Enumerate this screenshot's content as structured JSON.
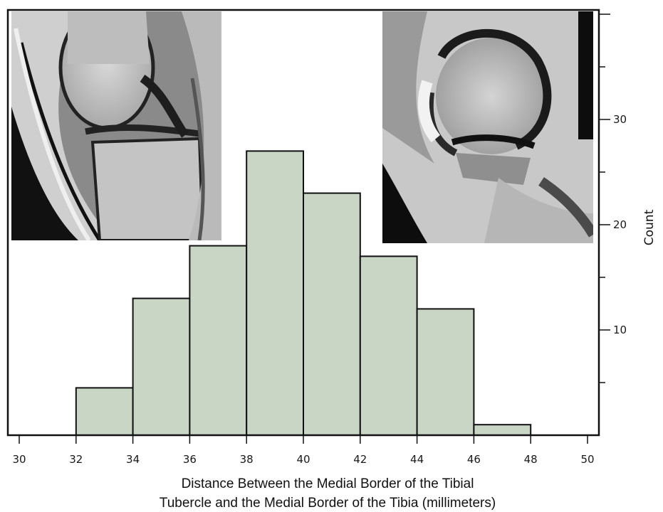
{
  "chart_data": {
    "type": "bar",
    "subtype": "histogram",
    "bins": [
      {
        "from": 32,
        "to": 34,
        "count": 4.5
      },
      {
        "from": 34,
        "to": 36,
        "count": 13
      },
      {
        "from": 36,
        "to": 38,
        "count": 18
      },
      {
        "from": 38,
        "to": 40,
        "count": 27
      },
      {
        "from": 40,
        "to": 42,
        "count": 23
      },
      {
        "from": 42,
        "to": 44,
        "count": 17
      },
      {
        "from": 44,
        "to": 46,
        "count": 12
      },
      {
        "from": 46,
        "to": 48,
        "count": 1
      }
    ],
    "xlabel_line1": "Distance Between the Medial Border of the Tibial",
    "xlabel_line2": "Tubercle and the Medial Border of the Tibia (millimeters)",
    "ylabel": "Count",
    "xlim": [
      30,
      50
    ],
    "ylim": [
      0,
      40
    ],
    "x_ticks": [
      "30",
      "32",
      "34",
      "36",
      "38",
      "40",
      "42",
      "44",
      "46",
      "48",
      "50"
    ],
    "y_ticks": [
      "10",
      "20",
      "30"
    ],
    "y_axis_side": "right",
    "grid": false,
    "colors": {
      "bar_fill": "#c9d6c6",
      "bar_stroke": "#111111",
      "frame": "#111111"
    },
    "insets": [
      {
        "kind": "image",
        "subject": "sagittal knee MRI",
        "placement": "top-left"
      },
      {
        "kind": "image",
        "subject": "knee MRI",
        "placement": "top-right"
      }
    ]
  }
}
